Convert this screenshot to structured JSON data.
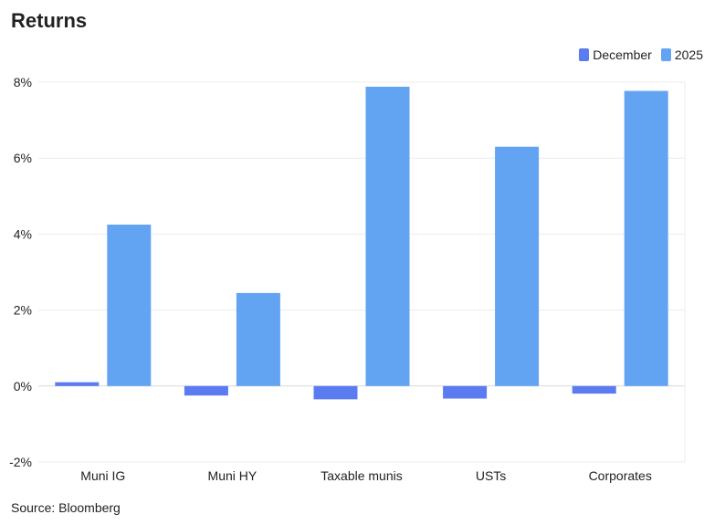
{
  "chart_data": {
    "type": "bar",
    "title": "Returns",
    "source": "Source: Bloomberg",
    "categories": [
      "Muni IG",
      "Muni HY",
      "Taxable munis",
      "USTs",
      "Corporates"
    ],
    "series": [
      {
        "name": "December",
        "color": "#5b7cf0",
        "values": [
          0.1,
          -0.25,
          -0.35,
          -0.33,
          -0.2
        ]
      },
      {
        "name": "2025",
        "color": "#62a4f2",
        "values": [
          4.25,
          2.45,
          7.88,
          6.3,
          7.77
        ]
      }
    ],
    "yticks": [
      "8%",
      "6%",
      "4%",
      "2%",
      "0%",
      "-2%"
    ],
    "ytick_values": [
      8,
      6,
      4,
      2,
      0,
      -2
    ],
    "ylim": [
      -2,
      8
    ],
    "legend_position": "top-right",
    "grid": true
  }
}
